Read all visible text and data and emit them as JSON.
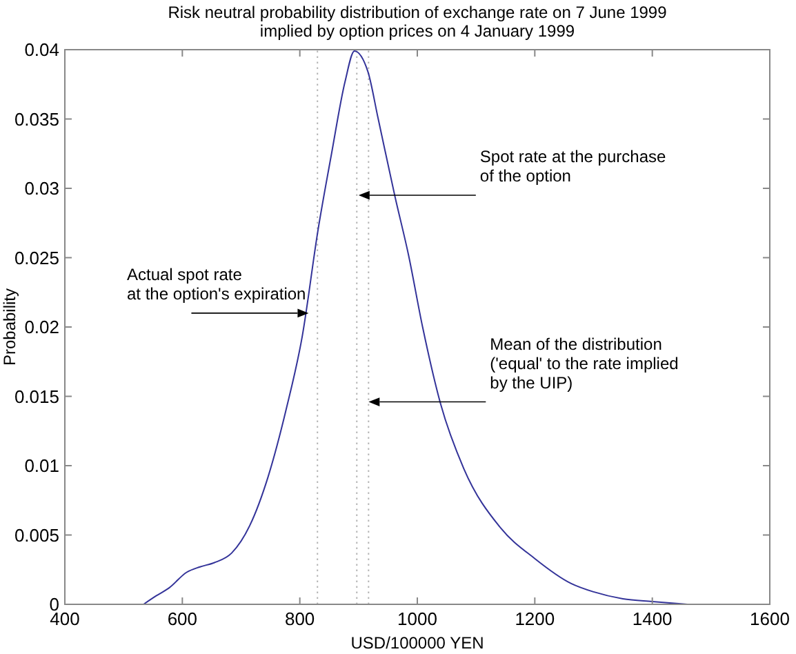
{
  "chart_data": {
    "type": "line",
    "title": "Risk neutral probability distribution of exchange rate on 7 June 1999\nimplied by option prices  on 4 January 1999",
    "xlabel": "USD/100000 YEN",
    "ylabel": "Probability",
    "x": [
      534,
      555,
      578,
      607,
      630,
      654,
      684,
      715,
      746,
      777,
      804,
      831,
      854,
      877,
      893,
      916,
      933,
      962,
      985,
      1009,
      1040,
      1079,
      1142,
      1200,
      1262,
      1300,
      1350,
      1400,
      1460
    ],
    "series": [
      {
        "color": "#333399",
        "values": [
          0,
          0.0006,
          0.0012,
          0.0023,
          0.0027,
          0.003,
          0.0037,
          0.0057,
          0.0092,
          0.0141,
          0.0193,
          0.027,
          0.0325,
          0.0377,
          0.0399,
          0.0384,
          0.0351,
          0.0294,
          0.0252,
          0.02,
          0.0144,
          0.0098,
          0.0055,
          0.0033,
          0.0015,
          0.0009,
          0.0004,
          0.0002,
          0
        ]
      }
    ],
    "xlim": [
      400,
      1600
    ],
    "xticks": [
      400,
      600,
      800,
      1000,
      1200,
      1400,
      1600
    ],
    "ylim": [
      0,
      0.04
    ],
    "yticks": [
      0,
      0.005,
      0.01,
      0.015,
      0.02,
      0.025,
      0.03,
      0.035,
      0.04
    ],
    "line_style": "solid",
    "ref_lines": [
      {
        "axis": "x",
        "value": 830,
        "color": "#b4b4b4",
        "line_style": "dotted"
      },
      {
        "axis": "x",
        "value": 897,
        "color": "#b4b4b4",
        "line_style": "dotted"
      },
      {
        "axis": "x",
        "value": 917,
        "color": "#b4b4b4",
        "line_style": "dotted"
      }
    ],
    "annotations": [
      {
        "text": "Actual spot rate\nat the option's expiration",
        "x": 815,
        "y": 0.021
      },
      {
        "text": "Spot rate at the purchase\nof the option",
        "x": 900,
        "y": 0.0295
      },
      {
        "text": "Mean of the distribution\n('equal' to the rate implied\nby the UIP)",
        "x": 917,
        "y": 0.0146
      }
    ]
  }
}
